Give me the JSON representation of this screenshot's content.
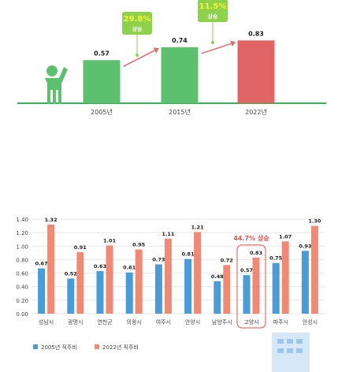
{
  "chart_data": [
    {
      "type": "bar",
      "categories": [
        "2005년",
        "2015년",
        "2022년"
      ],
      "values": [
        0.57,
        0.74,
        0.83
      ],
      "value_labels": [
        "0.57",
        "0.74",
        "0.83"
      ],
      "colors": [
        "#5dc06e",
        "#5dc06e",
        "#e06464"
      ],
      "annotations": [
        {
          "value": "29.8%",
          "text": "상승"
        },
        {
          "value": "11.5%",
          "text": "상승"
        }
      ],
      "accent_colors": {
        "badge": "#8ed14a",
        "badge_text": "#f7f23a",
        "arrow": "#e06a6a",
        "baseline": "#3ab05a",
        "figure": "#5dc06e"
      },
      "icons": [
        "person-pointing-icon"
      ],
      "grid": false
    },
    {
      "type": "bar",
      "categories": [
        "성남시",
        "광명시",
        "연천군",
        "의왕시",
        "여주시",
        "안양시",
        "남양주시",
        "고양시",
        "파주시",
        "안성시"
      ],
      "series": [
        {
          "name": "2005년 직주비",
          "values": [
            0.67,
            0.52,
            0.63,
            0.61,
            0.73,
            0.81,
            0.48,
            0.57,
            0.75,
            0.93
          ],
          "color": "#4a9bd6"
        },
        {
          "name": "2022년 직주비",
          "values": [
            1.32,
            0.91,
            1.01,
            0.95,
            1.11,
            1.21,
            0.72,
            0.83,
            1.07,
            1.3
          ],
          "color": "#f08a77"
        }
      ],
      "ylim": [
        0,
        1.4
      ],
      "yticks": [
        "0.00",
        "0.20",
        "0.40",
        "0.60",
        "0.80",
        "1.00",
        "1.20",
        "1.40"
      ],
      "highlight": {
        "category": "고양시",
        "label": "44.7% 상승",
        "color": "#e05050"
      },
      "grid": true,
      "legend_position": "bottom-left",
      "icons": [
        "building-illustration-icon"
      ]
    }
  ]
}
